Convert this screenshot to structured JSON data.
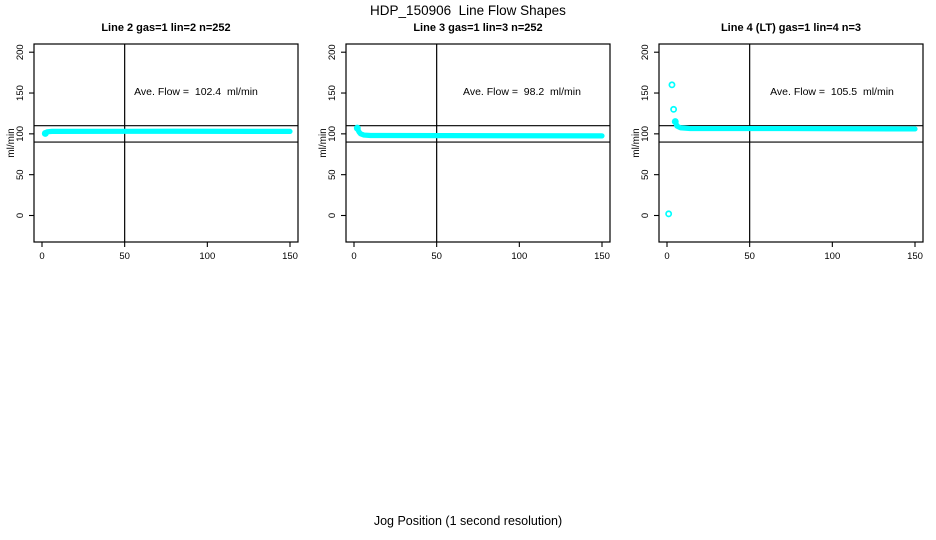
{
  "figure": {
    "title": "HDP_150906  Line Flow Shapes",
    "xlabel": "Jog Position (1 second resolution)",
    "background_color": "#ffffff",
    "axis_color": "#000000",
    "point_color": "#00ffff"
  },
  "chart_data": [
    {
      "type": "scatter",
      "title": "Line 2 gas=1 lin=2 n=252",
      "annotation": "Ave. Flow =  102.4  ml/min",
      "ave_flow_ml_min": 102.4,
      "n": 252,
      "ylabel": "ml/min",
      "xlim": [
        0,
        150
      ],
      "ylim": [
        0,
        200
      ],
      "xticks": [
        0,
        50,
        100,
        150
      ],
      "yticks": [
        0,
        50,
        100,
        150,
        200
      ],
      "vline_x": 50,
      "ref_lines_y": [
        110,
        90
      ],
      "marker": "open-circle",
      "color": "#00ffff",
      "band_profile": [
        [
          2,
          100.5
        ],
        [
          3,
          102.5
        ],
        [
          6,
          103
        ],
        [
          80,
          103.2
        ],
        [
          150,
          103
        ]
      ],
      "outlier_points": [
        [
          2,
          100.5
        ]
      ]
    },
    {
      "type": "scatter",
      "title": "Line 3 gas=1 lin=3 n=252",
      "annotation": "Ave. Flow =  98.2  ml/min",
      "ave_flow_ml_min": 98.2,
      "n": 252,
      "ylabel": "ml/min",
      "xlim": [
        0,
        150
      ],
      "ylim": [
        0,
        200
      ],
      "xticks": [
        0,
        50,
        100,
        150
      ],
      "yticks": [
        0,
        50,
        100,
        150,
        200
      ],
      "vline_x": 50,
      "ref_lines_y": [
        110,
        90
      ],
      "marker": "open-circle",
      "color": "#00ffff",
      "band_profile": [
        [
          2,
          107
        ],
        [
          3,
          102.5
        ],
        [
          4,
          100
        ],
        [
          6,
          98.5
        ],
        [
          10,
          98
        ],
        [
          150,
          97.5
        ]
      ],
      "outlier_points": [
        [
          2,
          107
        ]
      ]
    },
    {
      "type": "scatter",
      "title": "Line 4 (LT) gas=1 lin=4 n=3",
      "annotation": "Ave. Flow =  105.5  ml/min",
      "ave_flow_ml_min": 105.5,
      "n": 3,
      "ylabel": "ml/min",
      "xlim": [
        0,
        150
      ],
      "ylim": [
        0,
        200
      ],
      "xticks": [
        0,
        50,
        100,
        150
      ],
      "yticks": [
        0,
        50,
        100,
        150,
        200
      ],
      "vline_x": 50,
      "ref_lines_y": [
        110,
        90
      ],
      "marker": "open-circle",
      "color": "#00ffff",
      "band_profile": [
        [
          5,
          115
        ],
        [
          6,
          109.5
        ],
        [
          8,
          107.5
        ],
        [
          14,
          106.5
        ],
        [
          70,
          106.5
        ],
        [
          150,
          106
        ]
      ],
      "outlier_points": [
        [
          1,
          2
        ],
        [
          3,
          160
        ],
        [
          4,
          130
        ],
        [
          5,
          115
        ]
      ]
    }
  ]
}
